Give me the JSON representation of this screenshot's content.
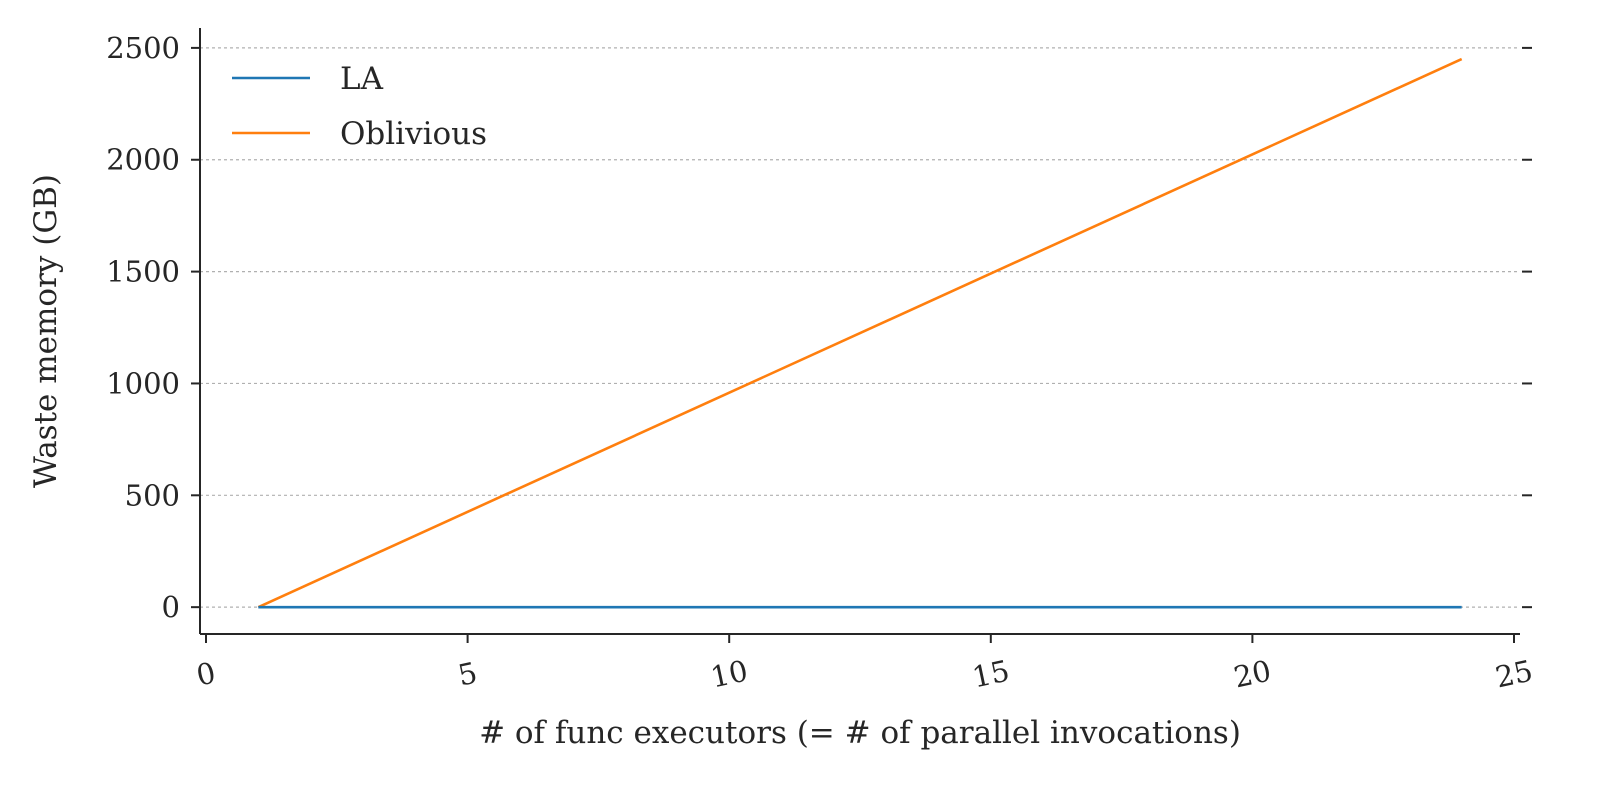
{
  "chart_data": {
    "type": "line",
    "title": "",
    "xlabel": "# of func executors (= # of parallel invocations)",
    "ylabel": "Waste memory (GB)",
    "xlim": [
      0,
      25
    ],
    "ylim": [
      -120,
      2580
    ],
    "xticks": [
      0,
      5,
      10,
      15,
      20,
      25
    ],
    "yticks": [
      0,
      500,
      1000,
      1500,
      2000,
      2500
    ],
    "grid": {
      "y": true,
      "x": false,
      "style": "dashed"
    },
    "legend_position": "top-left",
    "series": [
      {
        "name": "LA",
        "color": "#1f77b4",
        "x": [
          1,
          24
        ],
        "y": [
          0,
          0
        ]
      },
      {
        "name": "Oblivious",
        "color": "#ff7f0e",
        "x": [
          1,
          24
        ],
        "y": [
          0,
          2450
        ]
      }
    ]
  }
}
